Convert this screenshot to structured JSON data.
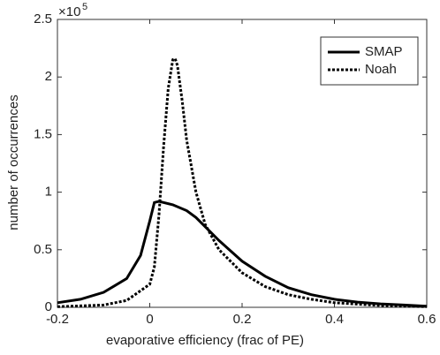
{
  "chart_data": {
    "type": "line",
    "x_label": "evaporative efficiency (frac of PE)",
    "y_label": "number of occurrences",
    "y_multiplier": "×10",
    "y_multiplier_exponent": "5",
    "xlim": [
      -0.2,
      0.6
    ],
    "xticks": [
      -0.2,
      0,
      0.2,
      0.4,
      0.6
    ],
    "ylim": [
      0,
      2.5
    ],
    "yticks": [
      0,
      0.5,
      1,
      1.5,
      2,
      2.5
    ],
    "grid": false,
    "legend_position": "upper-right",
    "series": [
      {
        "name": "SMAP",
        "color": "#000000",
        "style": "solid",
        "x": [
          -0.2,
          -0.15,
          -0.1,
          -0.05,
          -0.02,
          0,
          0.01,
          0.02,
          0.05,
          0.08,
          0.1,
          0.12,
          0.15,
          0.2,
          0.25,
          0.3,
          0.35,
          0.4,
          0.45,
          0.5,
          0.55,
          0.6
        ],
        "values": [
          0.04,
          0.07,
          0.13,
          0.25,
          0.45,
          0.75,
          0.91,
          0.92,
          0.89,
          0.84,
          0.78,
          0.7,
          0.58,
          0.4,
          0.27,
          0.17,
          0.11,
          0.07,
          0.045,
          0.03,
          0.02,
          0.01
        ]
      },
      {
        "name": "Noah",
        "color": "#000000",
        "style": "dotted",
        "x": [
          -0.2,
          -0.1,
          -0.05,
          0,
          0.01,
          0.02,
          0.03,
          0.04,
          0.05,
          0.055,
          0.06,
          0.07,
          0.08,
          0.1,
          0.12,
          0.15,
          0.2,
          0.25,
          0.3,
          0.35,
          0.4,
          0.5,
          0.6
        ],
        "values": [
          0.005,
          0.02,
          0.06,
          0.2,
          0.35,
          0.8,
          1.4,
          1.9,
          2.15,
          2.16,
          2.1,
          1.8,
          1.45,
          1.0,
          0.72,
          0.5,
          0.3,
          0.18,
          0.11,
          0.07,
          0.04,
          0.015,
          0.005
        ]
      }
    ]
  }
}
